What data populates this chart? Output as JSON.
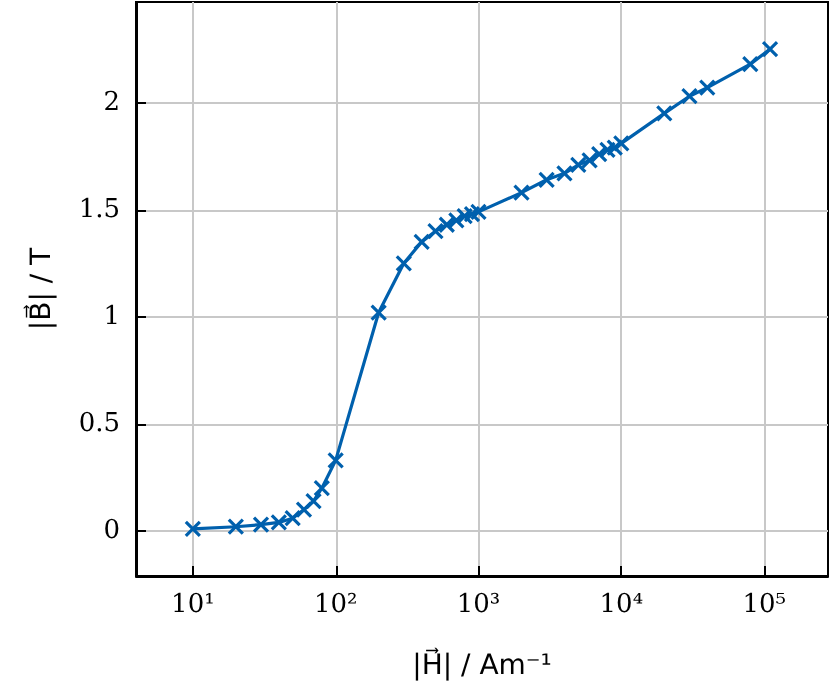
{
  "chart_data": {
    "type": "line",
    "xlabel": "|H⃗| / Am⁻¹",
    "ylabel": "|B⃗| / T",
    "log": "x",
    "grid": true,
    "marker": "cross",
    "line_style": "solid",
    "xlim": [
      4,
      280000
    ],
    "xticks": [
      {
        "value": 10,
        "label": "10¹"
      },
      {
        "value": 100,
        "label": "10²"
      },
      {
        "value": 1000,
        "label": "10³"
      },
      {
        "value": 10000,
        "label": "10⁴"
      },
      {
        "value": 100000,
        "label": "10⁵"
      }
    ],
    "ylim": [
      -0.21,
      2.47
    ],
    "yticks": [
      0,
      0.5,
      1,
      1.5,
      2
    ],
    "x": [
      10,
      20,
      30,
      40,
      50,
      60,
      70,
      80,
      100,
      200,
      300,
      400,
      500,
      600,
      700,
      800,
      900,
      1000,
      2000,
      3000,
      4000,
      5000,
      6000,
      7000,
      8000,
      9000,
      10000,
      20000,
      30000,
      40000,
      80000,
      110000
    ],
    "series": [
      {
        "color": "#0060ad",
        "values": [
          0.01,
          0.02,
          0.03,
          0.04,
          0.06,
          0.1,
          0.14,
          0.2,
          0.33,
          1.02,
          1.25,
          1.35,
          1.4,
          1.43,
          1.45,
          1.47,
          1.48,
          1.49,
          1.58,
          1.64,
          1.67,
          1.71,
          1.73,
          1.76,
          1.78,
          1.79,
          1.81,
          1.95,
          2.03,
          2.07,
          2.18,
          2.25
        ]
      }
    ]
  }
}
